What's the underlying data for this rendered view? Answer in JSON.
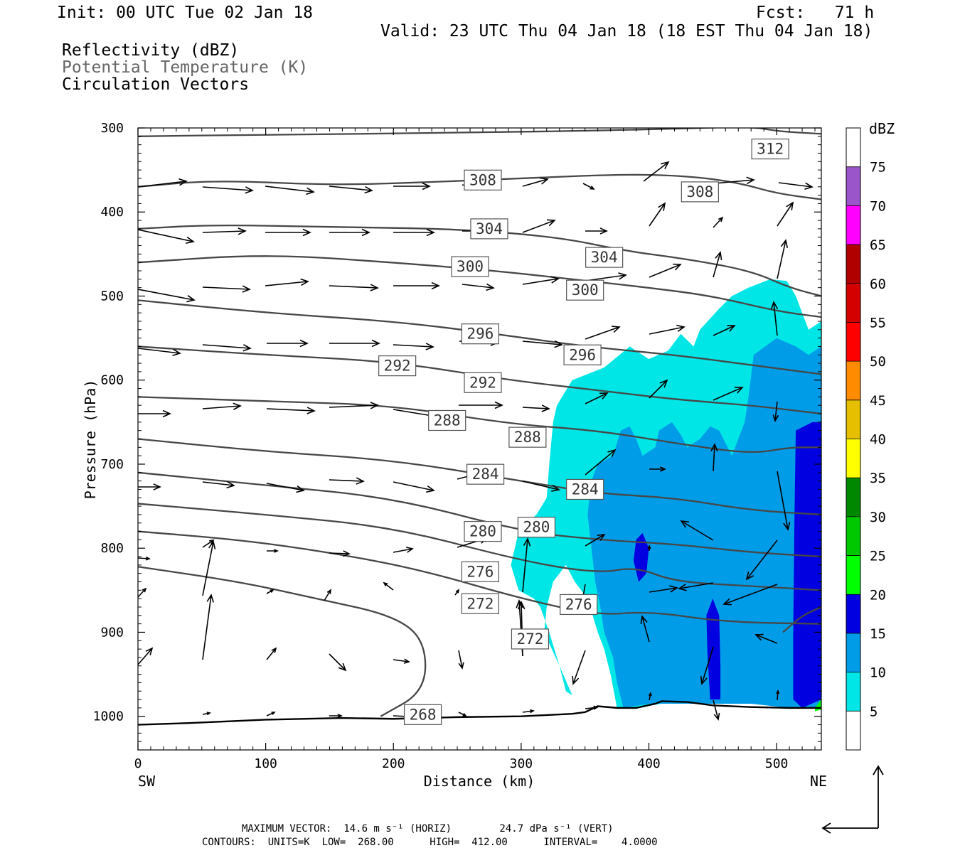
{
  "header": {
    "init": "Init: 00 UTC Tue 02 Jan 18",
    "fcst": "Fcst:   71 h",
    "valid": "Valid: 23 UTC Thu 04 Jan 18 (18 EST Thu 04 Jan 18)",
    "fields": [
      "Reflectivity (dBZ)",
      "Potential Temperature (K)",
      "Circulation Vectors"
    ]
  },
  "footer": {
    "line1": "MAXIMUM VECTOR:  14.6 m s⁻¹ (HORIZ)        24.7 dPa s⁻¹ (VERT)",
    "line2": "CONTOURS:  UNITS=K  LOW=  268.00      HIGH=  412.00      INTERVAL=    4.0000"
  },
  "chart_data": {
    "type": "heatmap",
    "xlabel": "Distance (km)",
    "ylabel": "Pressure (hPa)",
    "xlim": [
      0,
      535
    ],
    "ylim": [
      300,
      1040
    ],
    "y_inverted": true,
    "xticks": [
      0,
      100,
      200,
      300,
      400,
      500
    ],
    "yticks": [
      300,
      400,
      500,
      600,
      700,
      800,
      900,
      1000
    ],
    "x_end_labels": [
      "SW",
      "NE"
    ],
    "colorbar": {
      "title": "dBZ",
      "levels": [
        5,
        10,
        15,
        20,
        25,
        30,
        35,
        40,
        45,
        50,
        55,
        60,
        65,
        70,
        75
      ],
      "colors": [
        "#ffffff",
        "#00e6e6",
        "#009ce8",
        "#0000e0",
        "#00ff00",
        "#00c800",
        "#008800",
        "#ffff00",
        "#e6c000",
        "#ff8c00",
        "#ff0000",
        "#d40000",
        "#b00000",
        "#ff00ff",
        "#9955c9",
        "#ffffff"
      ]
    },
    "reflectivity_regions": [
      {
        "min_dbz": 5,
        "points": [
          [
            328,
            630
          ],
          [
            340,
            600
          ],
          [
            365,
            585
          ],
          [
            385,
            560
          ],
          [
            400,
            575
          ],
          [
            415,
            565
          ],
          [
            425,
            545
          ],
          [
            435,
            560
          ],
          [
            440,
            540
          ],
          [
            455,
            515
          ],
          [
            465,
            500
          ],
          [
            478,
            490
          ],
          [
            495,
            480
          ],
          [
            508,
            482
          ],
          [
            515,
            500
          ],
          [
            525,
            540
          ],
          [
            535,
            530
          ],
          [
            535,
            990
          ],
          [
            510,
            990
          ],
          [
            490,
            985
          ],
          [
            470,
            985
          ],
          [
            440,
            985
          ],
          [
            410,
            985
          ],
          [
            390,
            990
          ],
          [
            375,
            990
          ],
          [
            370,
            950
          ],
          [
            365,
            920
          ],
          [
            360,
            900
          ],
          [
            352,
            860
          ],
          [
            342,
            840
          ],
          [
            335,
            820
          ],
          [
            325,
            840
          ],
          [
            320,
            870
          ],
          [
            318,
            900
          ],
          [
            330,
            940
          ],
          [
            340,
            975
          ],
          [
            335,
            970
          ],
          [
            330,
            940
          ],
          [
            322,
            900
          ],
          [
            315,
            870
          ],
          [
            310,
            860
          ],
          [
            298,
            850
          ],
          [
            292,
            820
          ],
          [
            298,
            780
          ],
          [
            312,
            760
          ],
          [
            320,
            740
          ],
          [
            322,
            700
          ],
          [
            325,
            650
          ]
        ]
      },
      {
        "min_dbz": 10,
        "points": [
          [
            355,
            720
          ],
          [
            360,
            700
          ],
          [
            372,
            690
          ],
          [
            378,
            660
          ],
          [
            385,
            655
          ],
          [
            390,
            670
          ],
          [
            395,
            690
          ],
          [
            405,
            680
          ],
          [
            408,
            660
          ],
          [
            418,
            650
          ],
          [
            425,
            665
          ],
          [
            430,
            680
          ],
          [
            440,
            670
          ],
          [
            448,
            655
          ],
          [
            455,
            660
          ],
          [
            465,
            690
          ],
          [
            475,
            650
          ],
          [
            478,
            620
          ],
          [
            482,
            570
          ],
          [
            500,
            550
          ],
          [
            515,
            560
          ],
          [
            525,
            570
          ],
          [
            535,
            560
          ],
          [
            535,
            990
          ],
          [
            510,
            990
          ],
          [
            480,
            985
          ],
          [
            450,
            985
          ],
          [
            420,
            985
          ],
          [
            400,
            985
          ],
          [
            380,
            990
          ],
          [
            375,
            960
          ],
          [
            372,
            930
          ],
          [
            365,
            900
          ],
          [
            362,
            870
          ],
          [
            358,
            840
          ],
          [
            355,
            800
          ],
          [
            352,
            760
          ]
        ]
      },
      {
        "min_dbz": 15,
        "points": [
          [
            515,
            660
          ],
          [
            528,
            650
          ],
          [
            535,
            650
          ],
          [
            535,
            980
          ],
          [
            520,
            990
          ],
          [
            513,
            980
          ],
          [
            513,
            900
          ],
          [
            514,
            760
          ]
        ]
      },
      {
        "min_dbz": 15,
        "points": [
          [
            390,
            790
          ],
          [
            395,
            782
          ],
          [
            400,
            800
          ],
          [
            398,
            830
          ],
          [
            392,
            840
          ],
          [
            388,
            815
          ]
        ]
      },
      {
        "min_dbz": 15,
        "points": [
          [
            445,
            880
          ],
          [
            450,
            860
          ],
          [
            455,
            880
          ],
          [
            456,
            940
          ],
          [
            456,
            980
          ],
          [
            448,
            980
          ],
          [
            446,
            930
          ]
        ]
      },
      {
        "min_dbz": 20,
        "points": [
          [
            530,
            990
          ],
          [
            535,
            980
          ],
          [
            535,
            992
          ],
          [
            530,
            994
          ]
        ]
      }
    ],
    "theta_contours_K": [
      268,
      272,
      276,
      280,
      284,
      288,
      292,
      296,
      300,
      304,
      308,
      312
    ],
    "theta_labels": [
      {
        "value": "312",
        "x": 495,
        "y": 325
      },
      {
        "value": "308",
        "x": 270,
        "y": 362
      },
      {
        "value": "308",
        "x": 440,
        "y": 376
      },
      {
        "value": "304",
        "x": 275,
        "y": 420
      },
      {
        "value": "304",
        "x": 365,
        "y": 454
      },
      {
        "value": "300",
        "x": 260,
        "y": 465
      },
      {
        "value": "300",
        "x": 350,
        "y": 493
      },
      {
        "value": "296",
        "x": 268,
        "y": 545
      },
      {
        "value": "296",
        "x": 348,
        "y": 570
      },
      {
        "value": "292",
        "x": 203,
        "y": 583
      },
      {
        "value": "292",
        "x": 270,
        "y": 603
      },
      {
        "value": "288",
        "x": 242,
        "y": 648
      },
      {
        "value": "288",
        "x": 305,
        "y": 668
      },
      {
        "value": "284",
        "x": 272,
        "y": 712
      },
      {
        "value": "284",
        "x": 350,
        "y": 730
      },
      {
        "value": "280",
        "x": 270,
        "y": 780
      },
      {
        "value": "280",
        "x": 312,
        "y": 775
      },
      {
        "value": "276",
        "x": 268,
        "y": 828
      },
      {
        "value": "276",
        "x": 345,
        "y": 867
      },
      {
        "value": "272",
        "x": 268,
        "y": 866
      },
      {
        "value": "272",
        "x": 307,
        "y": 908
      },
      {
        "value": "268",
        "x": 223,
        "y": 998
      }
    ]
  }
}
